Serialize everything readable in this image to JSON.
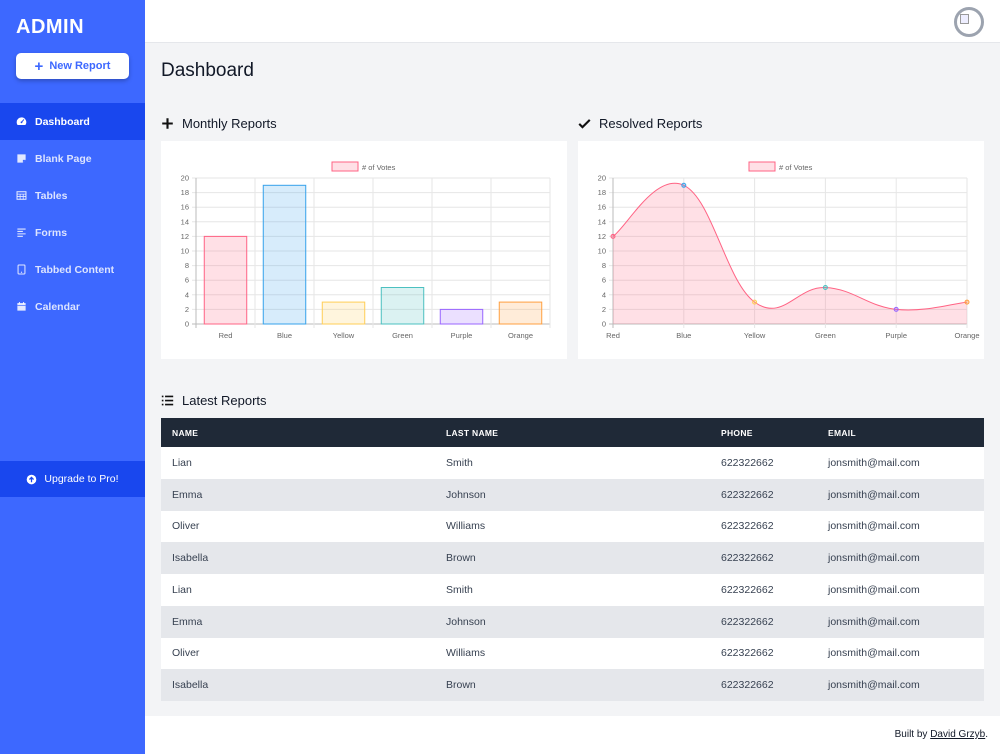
{
  "sidebar": {
    "brand": "ADMIN",
    "new_report_label": "New Report",
    "items": [
      {
        "label": "Dashboard",
        "icon": "tachometer-icon",
        "active": true
      },
      {
        "label": "Blank Page",
        "icon": "sticky-note-icon",
        "active": false
      },
      {
        "label": "Tables",
        "icon": "table-icon",
        "active": false
      },
      {
        "label": "Forms",
        "icon": "align-left-icon",
        "active": false
      },
      {
        "label": "Tabbed Content",
        "icon": "tablet-icon",
        "active": false
      },
      {
        "label": "Calendar",
        "icon": "calendar-icon",
        "active": false
      }
    ],
    "upgrade_label": "Upgrade to Pro!"
  },
  "main": {
    "title": "Dashboard",
    "monthly_title": "Monthly Reports",
    "resolved_title": "Resolved Reports",
    "latest_title": "Latest Reports"
  },
  "colors": {
    "sidebar": "#3d68ff",
    "sidebar_active": "#1947ee",
    "table_header": "#1f2937"
  },
  "chart_data": [
    {
      "type": "bar",
      "legend": "# of Votes",
      "legend_position": "top",
      "categories": [
        "Red",
        "Blue",
        "Yellow",
        "Green",
        "Purple",
        "Orange"
      ],
      "values": [
        12,
        19,
        3,
        5,
        2,
        3
      ],
      "ylim": [
        0,
        20
      ],
      "yticks": [
        "0",
        "2",
        "4",
        "6",
        "8",
        "10",
        "12",
        "14",
        "16",
        "18",
        "20"
      ],
      "grid": true,
      "colors": [
        "#ff6384",
        "#36a2eb",
        "#ffce56",
        "#4bc0c0",
        "#9966ff",
        "#ff9f40"
      ]
    },
    {
      "type": "area",
      "legend": "# of Votes",
      "legend_position": "top",
      "categories": [
        "Red",
        "Blue",
        "Yellow",
        "Green",
        "Purple",
        "Orange"
      ],
      "values": [
        12,
        19,
        3,
        5,
        2,
        3
      ],
      "ylim": [
        0,
        20
      ],
      "yticks": [
        "0",
        "2",
        "4",
        "6",
        "8",
        "10",
        "12",
        "14",
        "16",
        "18",
        "20"
      ],
      "grid": true,
      "colors": [
        "#ff6384",
        "#36a2eb",
        "#ffce56",
        "#4bc0c0",
        "#9966ff",
        "#ff9f40"
      ]
    }
  ],
  "table": {
    "headers": [
      "NAME",
      "LAST NAME",
      "PHONE",
      "EMAIL"
    ],
    "rows": [
      [
        "Lian",
        "Smith",
        "622322662",
        "jonsmith@mail.com"
      ],
      [
        "Emma",
        "Johnson",
        "622322662",
        "jonsmith@mail.com"
      ],
      [
        "Oliver",
        "Williams",
        "622322662",
        "jonsmith@mail.com"
      ],
      [
        "Isabella",
        "Brown",
        "622322662",
        "jonsmith@mail.com"
      ],
      [
        "Lian",
        "Smith",
        "622322662",
        "jonsmith@mail.com"
      ],
      [
        "Emma",
        "Johnson",
        "622322662",
        "jonsmith@mail.com"
      ],
      [
        "Oliver",
        "Williams",
        "622322662",
        "jonsmith@mail.com"
      ],
      [
        "Isabella",
        "Brown",
        "622322662",
        "jonsmith@mail.com"
      ]
    ]
  },
  "footer": {
    "prefix": "Built by",
    "author": "David Grzyb",
    "suffix": "."
  }
}
